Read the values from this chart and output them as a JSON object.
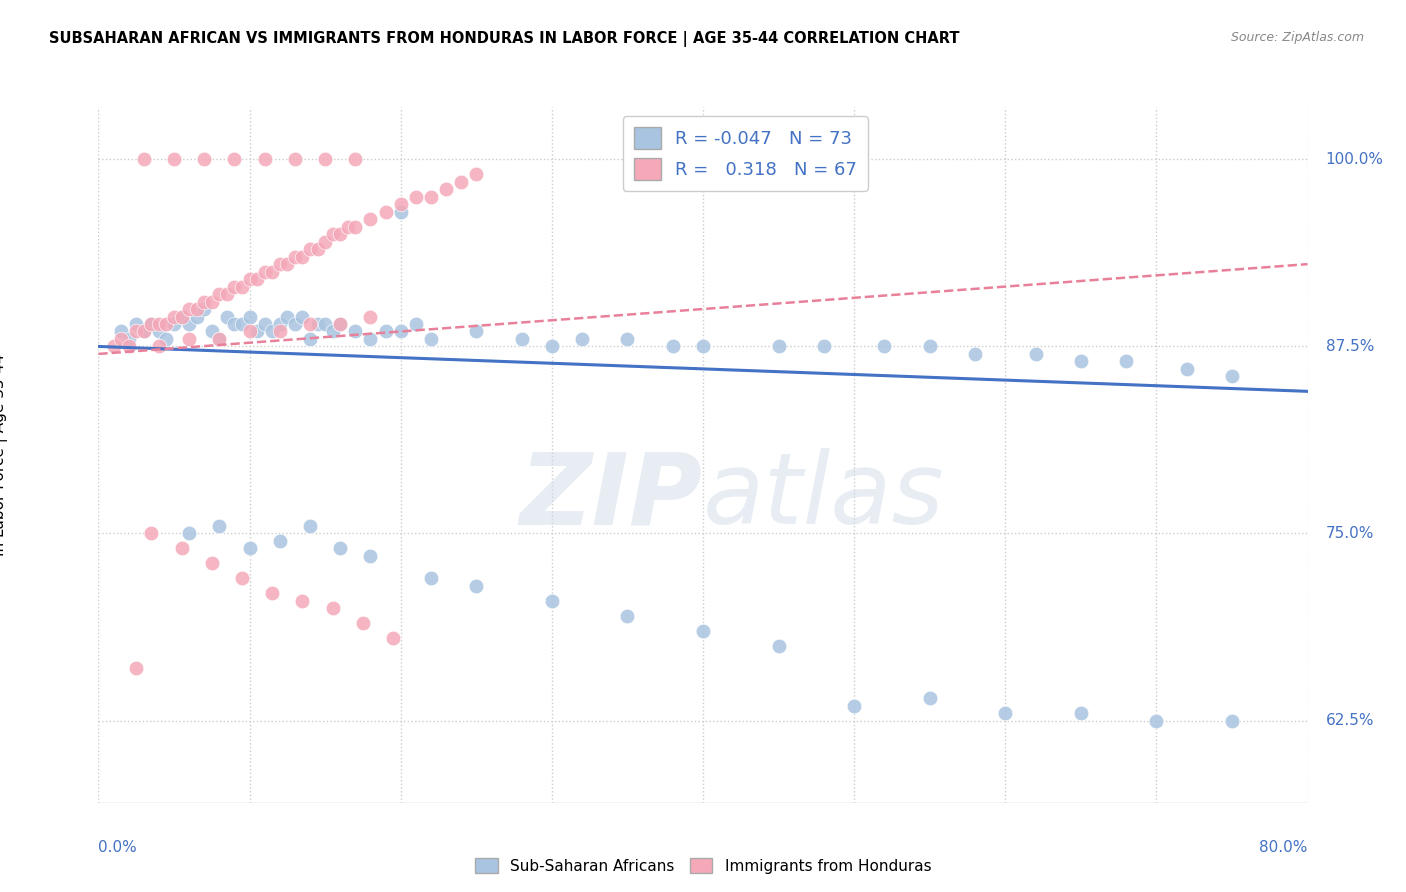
{
  "title": "SUBSAHARAN AFRICAN VS IMMIGRANTS FROM HONDURAS IN LABOR FORCE | AGE 35-44 CORRELATION CHART",
  "source": "Source: ZipAtlas.com",
  "xmin": 0.0,
  "xmax": 80.0,
  "ymin": 57.0,
  "ymax": 103.5,
  "blue_R": -0.047,
  "blue_N": 73,
  "pink_R": 0.318,
  "pink_N": 67,
  "blue_color": "#a8c4e0",
  "pink_color": "#f4a8b8",
  "blue_line_color": "#4472c4",
  "pink_line_color": "#e8809a",
  "bottom_legend_blue": "Sub-Saharan Africans",
  "bottom_legend_pink": "Immigrants from Honduras",
  "ylabel_label": "In Labor Force | Age 35-44",
  "blue_scatter_x": [
    1.5,
    2.0,
    2.5,
    3.0,
    3.5,
    4.0,
    4.5,
    5.0,
    5.5,
    6.0,
    6.5,
    7.0,
    7.5,
    8.0,
    8.5,
    9.0,
    9.5,
    10.0,
    10.5,
    11.0,
    11.5,
    12.0,
    12.5,
    13.0,
    13.5,
    14.0,
    14.5,
    15.0,
    15.5,
    16.0,
    17.0,
    18.0,
    19.0,
    20.0,
    21.0,
    22.0,
    25.0,
    28.0,
    30.0,
    32.0,
    35.0,
    38.0,
    40.0,
    45.0,
    48.0,
    52.0,
    55.0,
    58.0,
    62.0,
    65.0,
    68.0,
    72.0,
    75.0,
    6.0,
    8.0,
    10.0,
    12.0,
    14.0,
    16.0,
    18.0,
    22.0,
    25.0,
    30.0,
    35.0,
    40.0,
    45.0,
    50.0,
    55.0,
    60.0,
    65.0,
    70.0,
    75.0,
    20.0
  ],
  "blue_scatter_y": [
    88.5,
    88.0,
    89.0,
    88.5,
    89.0,
    88.5,
    88.0,
    89.0,
    89.5,
    89.0,
    89.5,
    90.0,
    88.5,
    88.0,
    89.5,
    89.0,
    89.0,
    89.5,
    88.5,
    89.0,
    88.5,
    89.0,
    89.5,
    89.0,
    89.5,
    88.0,
    89.0,
    89.0,
    88.5,
    89.0,
    88.5,
    88.0,
    88.5,
    88.5,
    89.0,
    88.0,
    88.5,
    88.0,
    87.5,
    88.0,
    88.0,
    87.5,
    87.5,
    87.5,
    87.5,
    87.5,
    87.5,
    87.0,
    87.0,
    86.5,
    86.5,
    86.0,
    85.5,
    75.0,
    75.5,
    74.0,
    74.5,
    75.5,
    74.0,
    73.5,
    72.0,
    71.5,
    70.5,
    69.5,
    68.5,
    67.5,
    63.5,
    64.0,
    63.0,
    63.0,
    62.5,
    62.5,
    96.5
  ],
  "pink_scatter_x": [
    1.0,
    1.5,
    2.0,
    2.5,
    3.0,
    3.5,
    4.0,
    4.5,
    5.0,
    5.5,
    6.0,
    6.5,
    7.0,
    7.5,
    8.0,
    8.5,
    9.0,
    9.5,
    10.0,
    10.5,
    11.0,
    11.5,
    12.0,
    12.5,
    13.0,
    13.5,
    14.0,
    14.5,
    15.0,
    15.5,
    16.0,
    16.5,
    17.0,
    18.0,
    19.0,
    20.0,
    21.0,
    22.0,
    23.0,
    24.0,
    25.0,
    3.0,
    5.0,
    7.0,
    9.0,
    11.0,
    13.0,
    15.0,
    17.0,
    4.0,
    6.0,
    8.0,
    10.0,
    12.0,
    14.0,
    16.0,
    18.0,
    3.5,
    5.5,
    7.5,
    9.5,
    11.5,
    13.5,
    15.5,
    17.5,
    19.5,
    2.5
  ],
  "pink_scatter_y": [
    87.5,
    88.0,
    87.5,
    88.5,
    88.5,
    89.0,
    89.0,
    89.0,
    89.5,
    89.5,
    90.0,
    90.0,
    90.5,
    90.5,
    91.0,
    91.0,
    91.5,
    91.5,
    92.0,
    92.0,
    92.5,
    92.5,
    93.0,
    93.0,
    93.5,
    93.5,
    94.0,
    94.0,
    94.5,
    95.0,
    95.0,
    95.5,
    95.5,
    96.0,
    96.5,
    97.0,
    97.5,
    97.5,
    98.0,
    98.5,
    99.0,
    100.0,
    100.0,
    100.0,
    100.0,
    100.0,
    100.0,
    100.0,
    100.0,
    87.5,
    88.0,
    88.0,
    88.5,
    88.5,
    89.0,
    89.0,
    89.5,
    75.0,
    74.0,
    73.0,
    72.0,
    71.0,
    70.5,
    70.0,
    69.0,
    68.0,
    66.0
  ]
}
